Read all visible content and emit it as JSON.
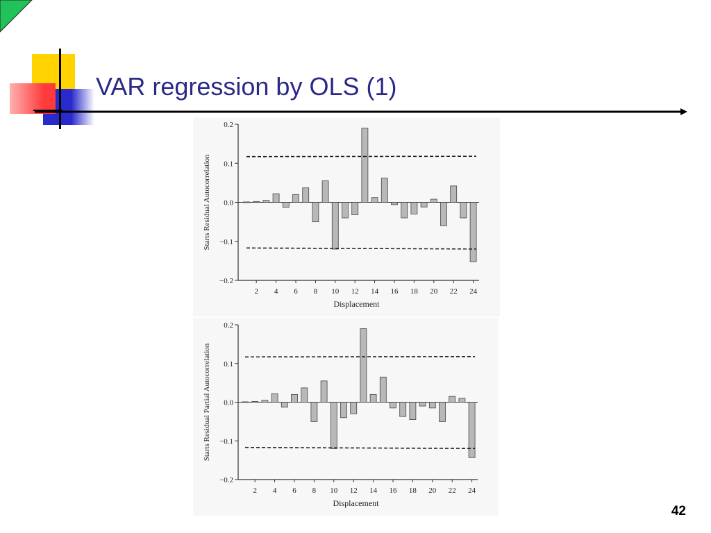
{
  "slide": {
    "title": "VAR regression by OLS (1)",
    "page_number": "42",
    "colors": {
      "title": "#2a2a86",
      "corner_triangle": "#22c25a",
      "deco_yellow": "#ffd200",
      "deco_red": "#ff3a3a",
      "deco_blue": "#2a2acc"
    }
  },
  "chart_data": [
    {
      "type": "bar",
      "ylabel": "Starts Residual Autocorrelation",
      "xlabel": "Displacement",
      "ylim": [
        -0.2,
        0.2
      ],
      "yticks": [
        0.2,
        0.1,
        0.0,
        -0.1,
        -0.2
      ],
      "ytick_labels": [
        "0.2",
        "0.1",
        "0.0",
        "−0.1",
        "−0.2"
      ],
      "xticks": [
        2,
        4,
        6,
        8,
        10,
        12,
        14,
        16,
        18,
        20,
        22,
        24
      ],
      "x": [
        1,
        2,
        3,
        4,
        5,
        6,
        7,
        8,
        9,
        10,
        11,
        12,
        13,
        14,
        15,
        16,
        17,
        18,
        19,
        20,
        21,
        22,
        23,
        24
      ],
      "values": [
        0.001,
        0.002,
        0.005,
        0.022,
        -0.013,
        0.02,
        0.037,
        -0.05,
        0.055,
        -0.12,
        -0.04,
        -0.032,
        0.19,
        0.012,
        0.062,
        -0.006,
        -0.04,
        -0.03,
        -0.012,
        0.008,
        -0.06,
        0.042,
        -0.04,
        -0.152
      ],
      "bands": {
        "upper": 0.117,
        "lower": -0.117
      },
      "grid": false
    },
    {
      "type": "bar",
      "ylabel": "Starts Residual Partial Autocorrelation",
      "xlabel": "Displacement",
      "ylim": [
        -0.2,
        0.2
      ],
      "yticks": [
        0.2,
        0.1,
        0.0,
        -0.1,
        -0.2
      ],
      "ytick_labels": [
        "0.2",
        "0.1",
        "0.0",
        "−0.1",
        "−0.2"
      ],
      "xticks": [
        2,
        4,
        6,
        8,
        10,
        12,
        14,
        16,
        18,
        20,
        22,
        24
      ],
      "x": [
        1,
        2,
        3,
        4,
        5,
        6,
        7,
        8,
        9,
        10,
        11,
        12,
        13,
        14,
        15,
        16,
        17,
        18,
        19,
        20,
        21,
        22,
        23,
        24
      ],
      "values": [
        0.001,
        0.002,
        0.005,
        0.022,
        -0.013,
        0.02,
        0.037,
        -0.05,
        0.055,
        -0.12,
        -0.04,
        -0.03,
        0.19,
        0.02,
        0.065,
        -0.015,
        -0.037,
        -0.045,
        -0.01,
        -0.015,
        -0.05,
        0.015,
        0.01,
        -0.143
      ],
      "bands": {
        "upper": 0.117,
        "lower": -0.117
      },
      "grid": false
    }
  ]
}
